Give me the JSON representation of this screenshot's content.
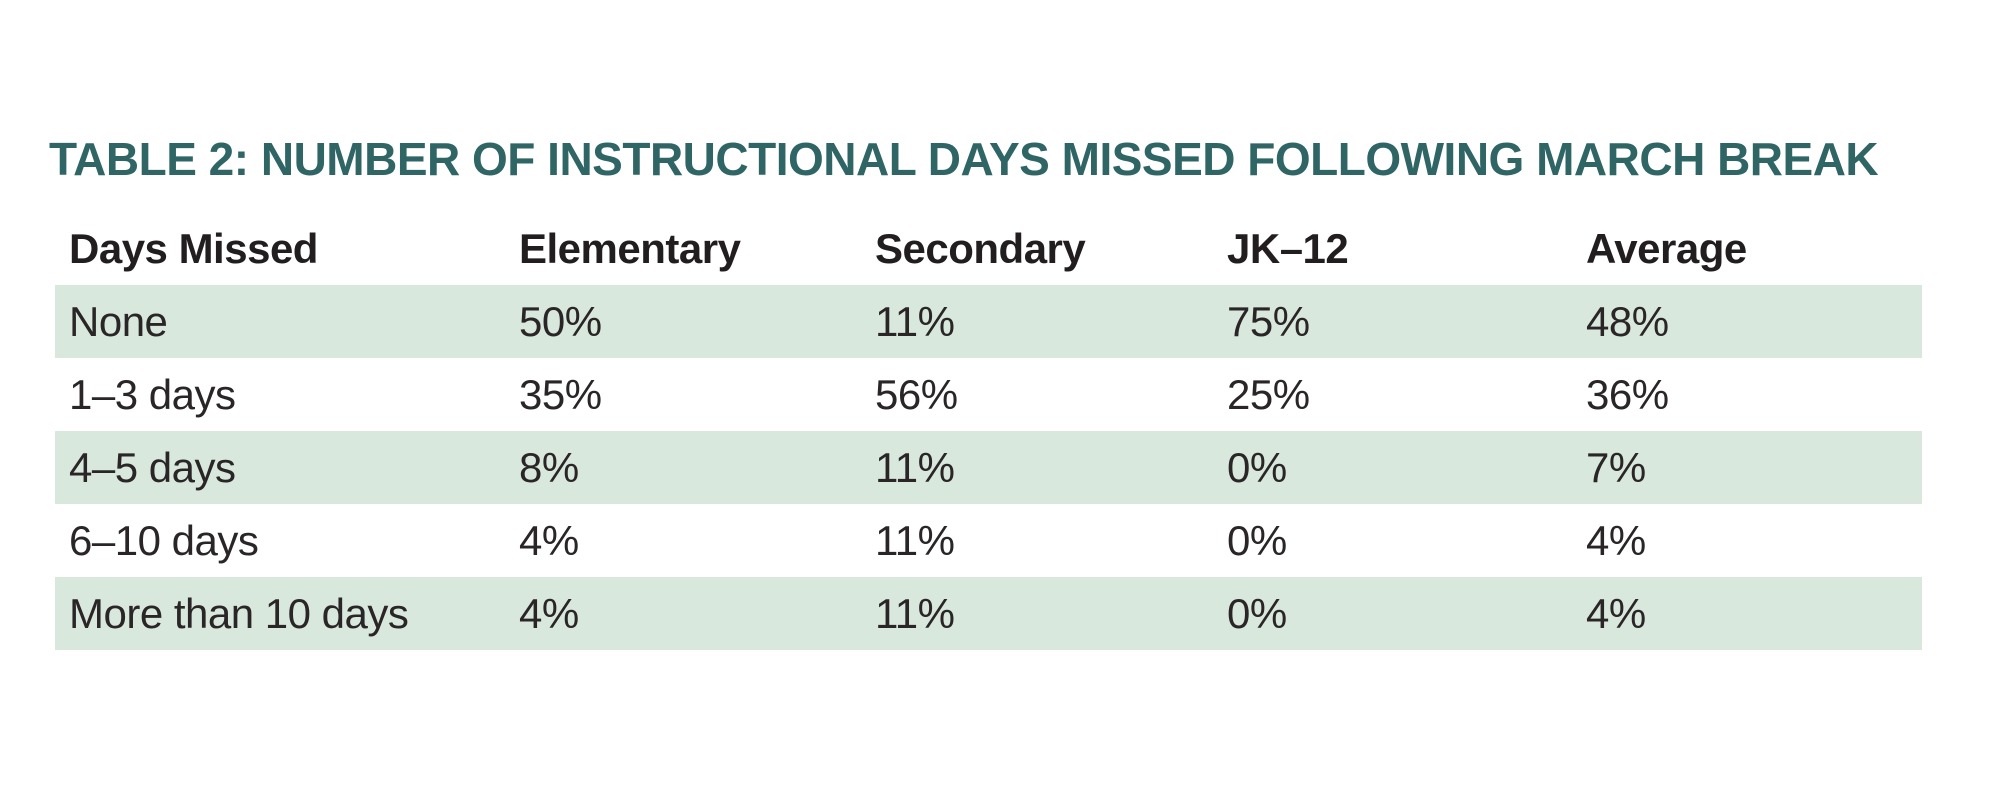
{
  "chart_data": {
    "type": "table",
    "title": "TABLE 2: NUMBER OF INSTRUCTIONAL DAYS MISSED FOLLOWING MARCH BREAK",
    "columns": [
      "Days Missed",
      "Elementary",
      "Secondary",
      "JK–12",
      "Average"
    ],
    "rows": [
      [
        "None",
        "50%",
        "11%",
        "75%",
        "48%"
      ],
      [
        "1–3 days",
        "35%",
        "56%",
        "25%",
        "36%"
      ],
      [
        "4–5 days",
        "8%",
        "11%",
        "0%",
        "7%"
      ],
      [
        "6–10 days",
        "4%",
        "11%",
        "0%",
        "4%"
      ],
      [
        "More than 10 days",
        "4%",
        "11%",
        "0%",
        "4%"
      ]
    ],
    "row_striping": [
      "green",
      "white",
      "green",
      "white",
      "green"
    ],
    "legend": "none",
    "colors": {
      "title_teal": "#2f6565",
      "row_green": "#d9e8dd",
      "header_text": "#221e1f",
      "body_text": "#2a2627",
      "background": "#ffffff"
    }
  }
}
